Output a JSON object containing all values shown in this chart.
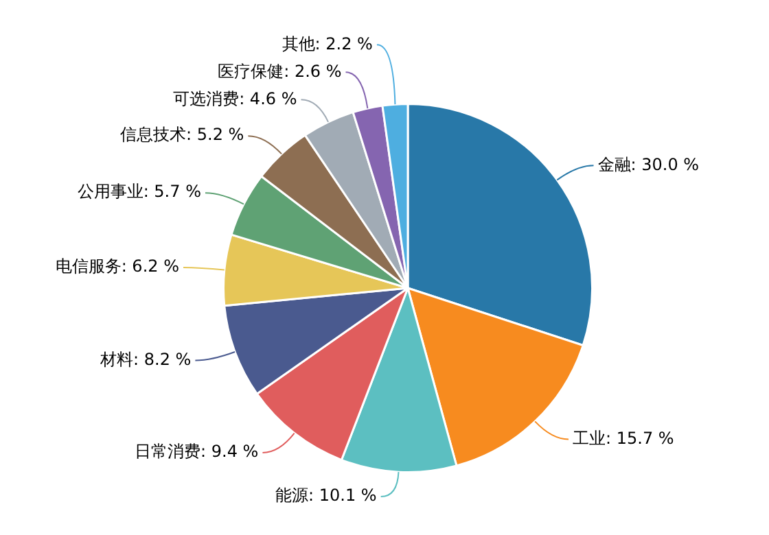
{
  "chart_data": {
    "type": "pie",
    "categories": [
      "金融",
      "工业",
      "能源",
      "日常消费",
      "材料",
      "电信服务",
      "公用事业",
      "信息技术",
      "可选消费",
      "医疗保健",
      "其他"
    ],
    "values": [
      30.0,
      15.7,
      10.1,
      9.4,
      8.2,
      6.2,
      5.7,
      5.2,
      4.6,
      2.6,
      2.2
    ],
    "value_labels": [
      "30.0 %",
      "15.7 %",
      "10.1 %",
      "9.4 %",
      "8.2 %",
      "6.2 %",
      "5.7 %",
      "5.2 %",
      "4.6 %",
      "2.6 %",
      "2.2 %"
    ],
    "colors": [
      "#2878a8",
      "#f78b1f",
      "#5cbfc1",
      "#e05d5d",
      "#4a5a8f",
      "#e6c658",
      "#5fa274",
      "#8d6e52",
      "#a1abb5",
      "#8565b0",
      "#4eaee0"
    ],
    "legend": false
  }
}
